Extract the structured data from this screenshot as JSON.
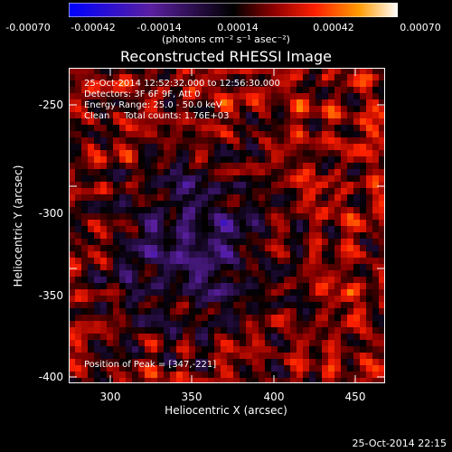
{
  "colorbar": {
    "ticks": [
      "-0.00070",
      "-0.00042",
      "-0.00014",
      "0.00014",
      "0.00042",
      "0.00070"
    ],
    "units": "(photons cm⁻² s⁻¹ asec⁻²)",
    "colors": [
      "#0000ff",
      "#5a1fa0",
      "#000000",
      "#8b0000",
      "#ff2000",
      "#ff9a00",
      "#ffffff"
    ]
  },
  "title": "Reconstructed RHESSI Image",
  "overlay": {
    "time": "25-Oct-2014 12:52:32.000 to 12:56:30.000",
    "detectors": "Detectors: 3F 6F 9F, Att 0",
    "energy": "Energy Range: 25.0 - 50.0 keV",
    "clean": "Clean     Total counts: 1.76E+03",
    "peak": "Position of Peak = [347,-221]"
  },
  "axes": {
    "xlabel": "Heliocentric X (arcsec)",
    "ylabel": "Heliocentric Y (arcsec)",
    "xticks": [
      "300",
      "350",
      "400",
      "450"
    ],
    "yticks": [
      "-250",
      "-300",
      "-350",
      "-400"
    ]
  },
  "timestamp": "25-Oct-2014 22:15"
}
